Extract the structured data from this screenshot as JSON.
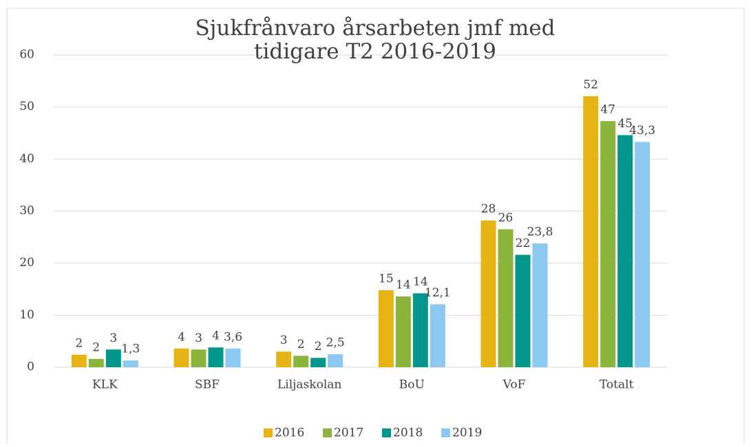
{
  "chart_data": {
    "type": "bar",
    "title": "Sjukfrånvaro årsarbeten jmf med tidigare T2 2016-2019",
    "categories": [
      "KLK",
      "SBF",
      "Liljaskolan",
      "BoU",
      "VoF",
      "Totalt"
    ],
    "series": [
      {
        "name": "2016",
        "color": "#e6b414",
        "values": [
          2.4,
          3.6,
          3.0,
          14.8,
          28.2,
          52.1
        ],
        "value_labels": [
          "2",
          "4",
          "3",
          "15",
          "28",
          "52"
        ]
      },
      {
        "name": "2017",
        "color": "#8cb43c",
        "values": [
          1.6,
          3.4,
          2.2,
          13.6,
          26.5,
          47.3
        ],
        "value_labels": [
          "2",
          "3",
          "2",
          "14",
          "26",
          "47"
        ]
      },
      {
        "name": "2018",
        "color": "#00968c",
        "values": [
          3.4,
          3.8,
          1.8,
          14.2,
          21.6,
          44.6
        ],
        "value_labels": [
          "3",
          "4",
          "2",
          "14",
          "22",
          "45"
        ]
      },
      {
        "name": "2019",
        "color": "#8cc8f0",
        "values": [
          1.3,
          3.6,
          2.5,
          12.1,
          23.8,
          43.3
        ],
        "value_labels": [
          "1,3",
          "3,6",
          "2,5",
          "12,1",
          "23,8",
          "43,3"
        ]
      }
    ],
    "ylim": [
      0,
      60
    ],
    "yticks": [
      0,
      10,
      20,
      30,
      40,
      50,
      60
    ],
    "grid": true,
    "legend": "bottom"
  }
}
